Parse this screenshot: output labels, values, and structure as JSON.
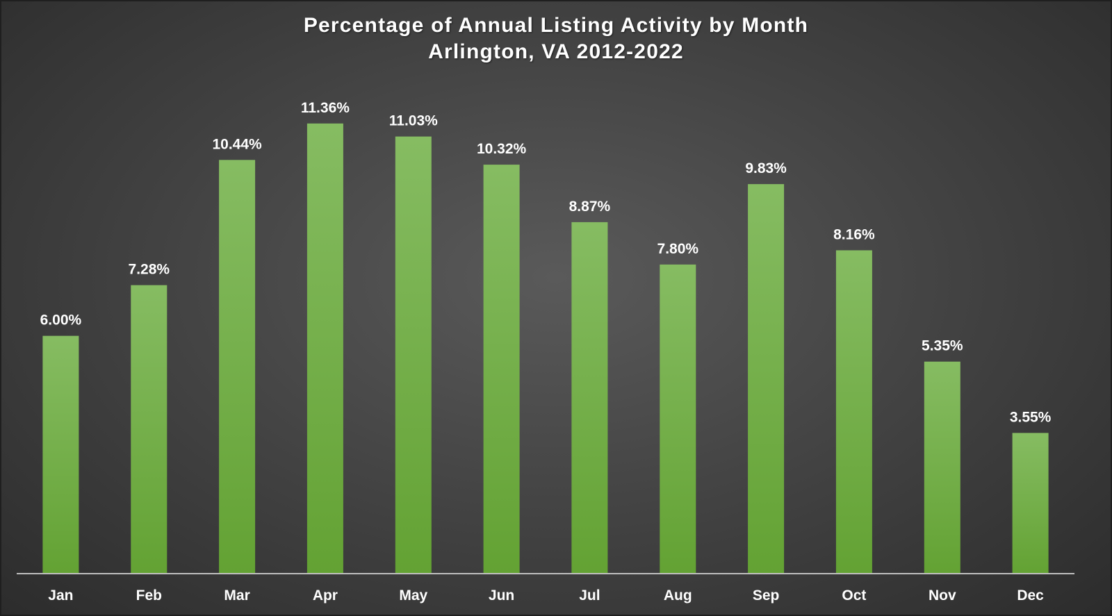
{
  "colors": {
    "bar_top": "#86bc62",
    "bar_bottom": "#63a233",
    "axis": "#bfbfbf",
    "text": "#ffffff"
  },
  "chart_data": {
    "type": "bar",
    "title": "Percentage of Annual Listing Activity by Month",
    "subtitle": "Arlington, VA 2012-2022",
    "xlabel": "",
    "ylabel": "",
    "categories": [
      "Jan",
      "Feb",
      "Mar",
      "Apr",
      "May",
      "Jun",
      "Jul",
      "Aug",
      "Sep",
      "Oct",
      "Nov",
      "Dec"
    ],
    "values": [
      6.0,
      7.28,
      10.44,
      11.36,
      11.03,
      10.32,
      8.87,
      7.8,
      9.83,
      8.16,
      5.35,
      3.55
    ],
    "data_labels": [
      "6.00%",
      "7.28%",
      "10.44%",
      "11.36%",
      "11.03%",
      "10.32%",
      "8.87%",
      "7.80%",
      "9.83%",
      "8.16%",
      "5.35%",
      "3.55%"
    ],
    "ylim": [
      0,
      14
    ],
    "grid": false,
    "legend": "none"
  }
}
